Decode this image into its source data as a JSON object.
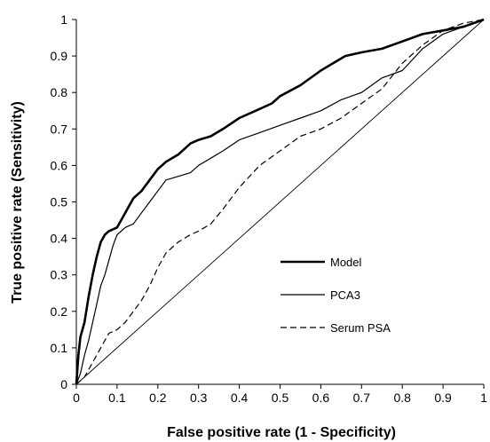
{
  "chart_data": {
    "type": "line",
    "title": "",
    "xlabel": "False positive rate (1 - Specificity)",
    "ylabel": "True positive rate (Sensitivity)",
    "xlim": [
      0,
      1
    ],
    "ylim": [
      0,
      1
    ],
    "x_ticks": [
      "0",
      "0.1",
      "0.2",
      "0.3",
      "0.4",
      "0.5",
      "0.6",
      "0.7",
      "0.8",
      "0.9",
      "1"
    ],
    "y_ticks": [
      "0",
      "0.1",
      "0.2",
      "0.3",
      "0.4",
      "0.5",
      "0.6",
      "0.7",
      "0.8",
      "0.9",
      "1"
    ],
    "grid": false,
    "legend_position": "lower-right",
    "series": [
      {
        "name": "Model",
        "style": "thick-solid",
        "color": "#000000",
        "points": [
          [
            0,
            0
          ],
          [
            0.005,
            0.08
          ],
          [
            0.01,
            0.13
          ],
          [
            0.02,
            0.17
          ],
          [
            0.03,
            0.24
          ],
          [
            0.04,
            0.3
          ],
          [
            0.05,
            0.35
          ],
          [
            0.06,
            0.39
          ],
          [
            0.07,
            0.41
          ],
          [
            0.08,
            0.42
          ],
          [
            0.1,
            0.43
          ],
          [
            0.12,
            0.47
          ],
          [
            0.14,
            0.51
          ],
          [
            0.16,
            0.53
          ],
          [
            0.18,
            0.56
          ],
          [
            0.2,
            0.59
          ],
          [
            0.22,
            0.61
          ],
          [
            0.25,
            0.63
          ],
          [
            0.28,
            0.66
          ],
          [
            0.3,
            0.67
          ],
          [
            0.33,
            0.68
          ],
          [
            0.36,
            0.7
          ],
          [
            0.4,
            0.73
          ],
          [
            0.44,
            0.75
          ],
          [
            0.48,
            0.77
          ],
          [
            0.5,
            0.79
          ],
          [
            0.55,
            0.82
          ],
          [
            0.6,
            0.86
          ],
          [
            0.63,
            0.88
          ],
          [
            0.66,
            0.9
          ],
          [
            0.7,
            0.91
          ],
          [
            0.75,
            0.92
          ],
          [
            0.8,
            0.94
          ],
          [
            0.85,
            0.96
          ],
          [
            0.9,
            0.97
          ],
          [
            0.95,
            0.98
          ],
          [
            1.0,
            1.0
          ]
        ]
      },
      {
        "name": "PCA3",
        "style": "thin-solid",
        "color": "#000000",
        "points": [
          [
            0,
            0
          ],
          [
            0.01,
            0.03
          ],
          [
            0.02,
            0.08
          ],
          [
            0.03,
            0.12
          ],
          [
            0.04,
            0.17
          ],
          [
            0.05,
            0.22
          ],
          [
            0.06,
            0.27
          ],
          [
            0.07,
            0.3
          ],
          [
            0.08,
            0.34
          ],
          [
            0.09,
            0.38
          ],
          [
            0.1,
            0.41
          ],
          [
            0.12,
            0.43
          ],
          [
            0.14,
            0.44
          ],
          [
            0.16,
            0.47
          ],
          [
            0.18,
            0.5
          ],
          [
            0.2,
            0.53
          ],
          [
            0.22,
            0.56
          ],
          [
            0.25,
            0.57
          ],
          [
            0.28,
            0.58
          ],
          [
            0.3,
            0.6
          ],
          [
            0.33,
            0.62
          ],
          [
            0.36,
            0.64
          ],
          [
            0.4,
            0.67
          ],
          [
            0.45,
            0.69
          ],
          [
            0.5,
            0.71
          ],
          [
            0.55,
            0.73
          ],
          [
            0.6,
            0.75
          ],
          [
            0.65,
            0.78
          ],
          [
            0.7,
            0.8
          ],
          [
            0.75,
            0.84
          ],
          [
            0.8,
            0.86
          ],
          [
            0.85,
            0.92
          ],
          [
            0.9,
            0.96
          ],
          [
            0.95,
            0.98
          ],
          [
            1.0,
            1.0
          ]
        ]
      },
      {
        "name": "Serum PSA",
        "style": "dashed",
        "color": "#000000",
        "points": [
          [
            0,
            0
          ],
          [
            0.02,
            0.02
          ],
          [
            0.04,
            0.06
          ],
          [
            0.06,
            0.1
          ],
          [
            0.08,
            0.14
          ],
          [
            0.1,
            0.15
          ],
          [
            0.12,
            0.17
          ],
          [
            0.14,
            0.2
          ],
          [
            0.16,
            0.23
          ],
          [
            0.18,
            0.27
          ],
          [
            0.2,
            0.32
          ],
          [
            0.22,
            0.36
          ],
          [
            0.25,
            0.39
          ],
          [
            0.28,
            0.41
          ],
          [
            0.3,
            0.42
          ],
          [
            0.33,
            0.44
          ],
          [
            0.36,
            0.48
          ],
          [
            0.4,
            0.54
          ],
          [
            0.45,
            0.6
          ],
          [
            0.5,
            0.64
          ],
          [
            0.55,
            0.68
          ],
          [
            0.6,
            0.7
          ],
          [
            0.65,
            0.73
          ],
          [
            0.7,
            0.77
          ],
          [
            0.75,
            0.81
          ],
          [
            0.8,
            0.88
          ],
          [
            0.85,
            0.93
          ],
          [
            0.9,
            0.97
          ],
          [
            0.95,
            0.99
          ],
          [
            1.0,
            1.0
          ]
        ]
      },
      {
        "name": "",
        "style": "reference-diagonal",
        "color": "#000000",
        "points": [
          [
            0,
            0
          ],
          [
            1,
            1
          ]
        ]
      }
    ]
  }
}
